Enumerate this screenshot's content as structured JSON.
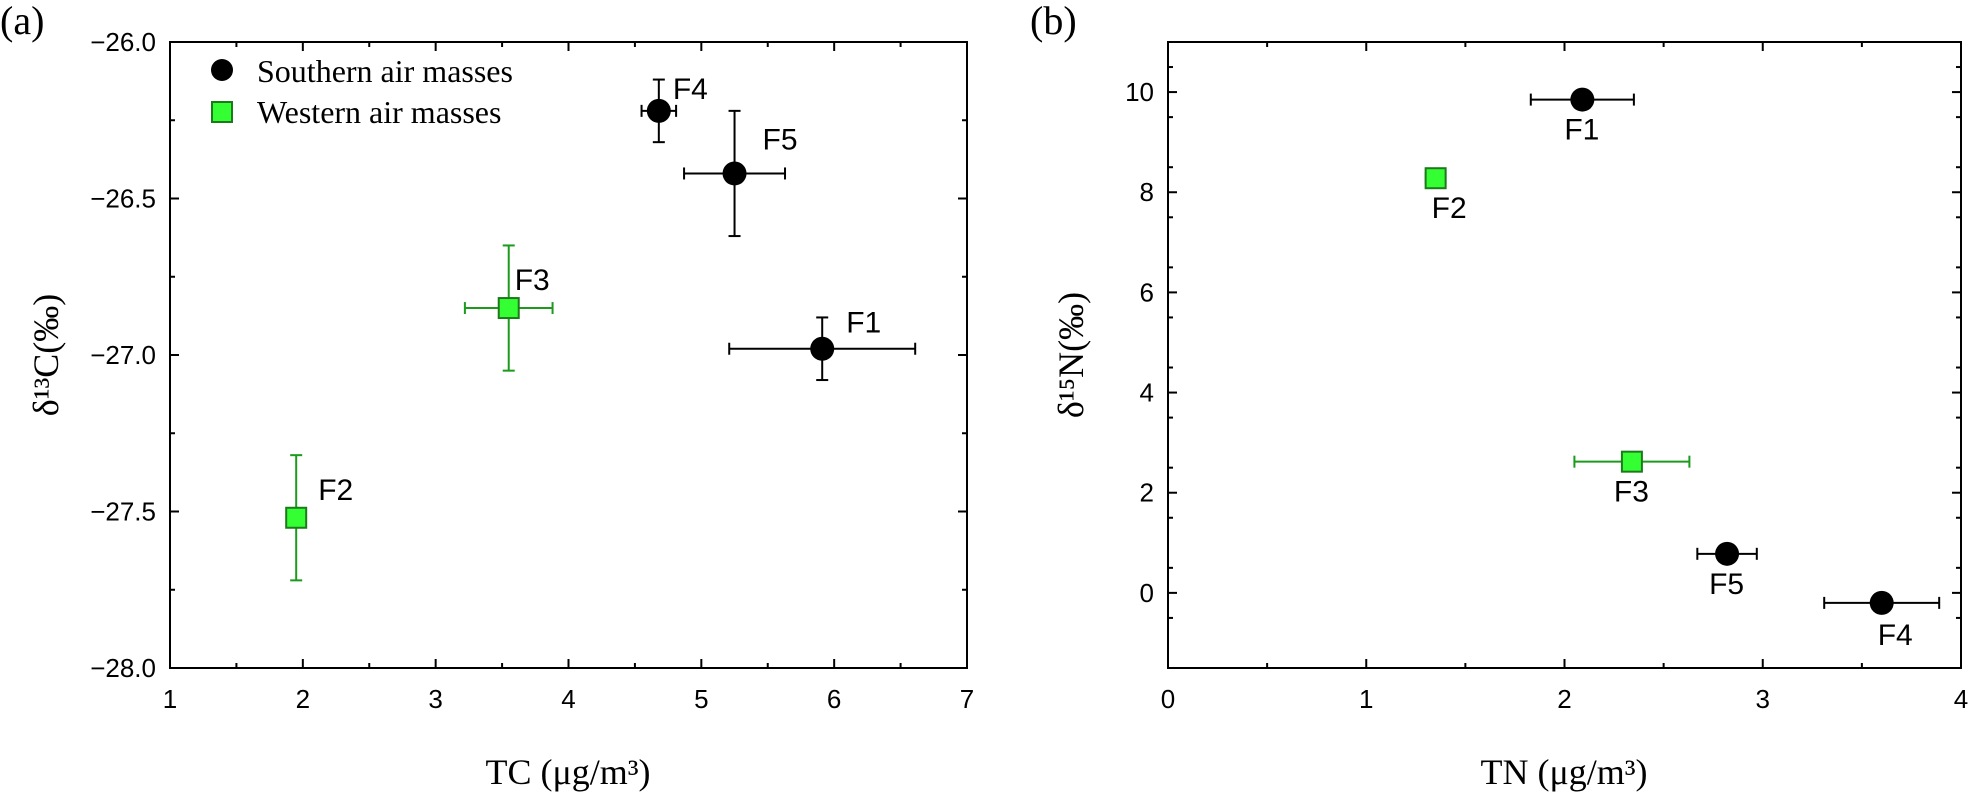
{
  "chart_data": [
    {
      "type": "scatter",
      "panel_label": "(a)",
      "xlabel": "TC (μg/m³)",
      "ylabel": "δ¹³C(‰)",
      "xlim": [
        1,
        7
      ],
      "ylim": [
        -28.0,
        -26.0
      ],
      "x_ticks": [
        "1",
        "2",
        "3",
        "4",
        "5",
        "6",
        "7"
      ],
      "y_ticks": [
        "−26.0",
        "−26.5",
        "−27.0",
        "−27.5",
        "−28.0"
      ],
      "y_tick_values": [
        -26.0,
        -26.5,
        -27.0,
        -27.5,
        -28.0
      ],
      "legend": {
        "placement": "top-left",
        "entries": [
          "Southern air masses",
          "Western air masses"
        ]
      },
      "series": [
        {
          "name": "Southern air masses",
          "color": "#000000",
          "marker": "circle",
          "points": [
            {
              "label": "F4",
              "x": 4.68,
              "y": -26.22,
              "xerr": 0.13,
              "yerr": 0.1
            },
            {
              "label": "F5",
              "x": 5.25,
              "y": -26.42,
              "xerr": 0.38,
              "yerr": 0.2
            },
            {
              "label": "F1",
              "x": 5.91,
              "y": -26.98,
              "xerr": 0.7,
              "yerr": 0.1
            }
          ]
        },
        {
          "name": "Western air masses",
          "color": "#33ff33",
          "marker": "square",
          "points": [
            {
              "label": "F3",
              "x": 3.55,
              "y": -26.85,
              "xerr": 0.33,
              "yerr": 0.2
            },
            {
              "label": "F2",
              "x": 1.95,
              "y": -27.52,
              "xerr": 0.0,
              "yerr": 0.2
            }
          ]
        }
      ]
    },
    {
      "type": "scatter",
      "panel_label": "(b)",
      "xlabel": "TN (μg/m³)",
      "ylabel": "δ¹⁵N(‰)",
      "xlim": [
        0,
        4
      ],
      "ylim": [
        -1.5,
        11
      ],
      "x_ticks": [
        "0",
        "1",
        "2",
        "3",
        "4"
      ],
      "y_ticks": [
        "0",
        "2",
        "4",
        "6",
        "8",
        "10"
      ],
      "y_tick_values": [
        0,
        2,
        4,
        6,
        8,
        10
      ],
      "series": [
        {
          "name": "Southern air masses",
          "color": "#000000",
          "marker": "circle",
          "points": [
            {
              "label": "F1",
              "x": 2.09,
              "y": 9.85,
              "xerr": 0.26,
              "yerr": 0
            },
            {
              "label": "F5",
              "x": 2.82,
              "y": 0.78,
              "xerr": 0.15,
              "yerr": 0
            },
            {
              "label": "F4",
              "x": 3.6,
              "y": -0.2,
              "xerr": 0.29,
              "yerr": 0
            }
          ]
        },
        {
          "name": "Western air masses",
          "color": "#33ff33",
          "marker": "square",
          "points": [
            {
              "label": "F2",
              "x": 1.35,
              "y": 8.28,
              "xerr": 0.05,
              "yerr": 0
            },
            {
              "label": "F3",
              "x": 2.34,
              "y": 2.62,
              "xerr": 0.29,
              "yerr": 0
            }
          ]
        }
      ]
    }
  ]
}
